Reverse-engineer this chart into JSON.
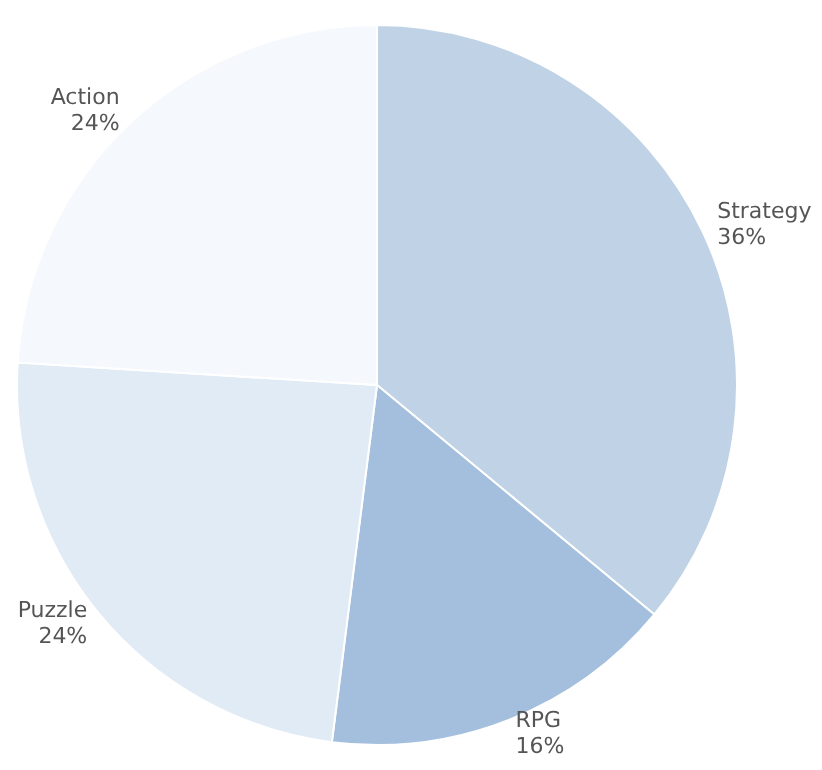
{
  "chart_data": {
    "type": "pie",
    "categories": [
      "Strategy",
      "RPG",
      "Puzzle",
      "Action"
    ],
    "values": [
      36,
      16,
      24,
      24
    ],
    "value_labels": [
      "36%",
      "16%",
      "24%",
      "24%"
    ],
    "colors": [
      "#c0d3e6",
      "#a3bfdd",
      "#e0ebf5",
      "#f5f9fd"
    ],
    "legend": false
  }
}
